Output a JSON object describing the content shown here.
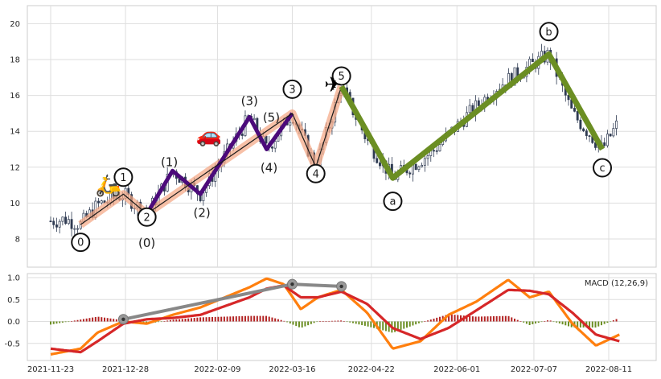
{
  "chart_data": [
    {
      "type": "candlestick",
      "title": "",
      "xlabel": "",
      "ylabel": "",
      "ylim": [
        7,
        21
      ],
      "yticks": [
        "8",
        "10",
        "12",
        "14",
        "16",
        "18",
        "20"
      ],
      "grid": true,
      "waves": {
        "impulse": [
          {
            "label": "0",
            "date": "2021-12-07",
            "value": 8.8
          },
          {
            "label": "1",
            "date": "2021-12-27",
            "value": 10.5
          },
          {
            "label": "2",
            "date": "2022-01-07",
            "value": 9.4
          },
          {
            "label": "3",
            "date": "2022-03-16",
            "value": 15.0
          },
          {
            "label": "4",
            "date": "2022-03-27",
            "value": 12.0
          },
          {
            "label": "5",
            "date": "2022-04-08",
            "value": 16.5
          }
        ],
        "sub_impulse": [
          {
            "label": "(0)",
            "date": "2022-01-07",
            "value": 9.4
          },
          {
            "label": "(1)",
            "date": "2022-01-19",
            "value": 11.8
          },
          {
            "label": "(2)",
            "date": "2022-02-01",
            "value": 10.5
          },
          {
            "label": "(3)",
            "date": "2022-02-24",
            "value": 14.8
          },
          {
            "label": "(4)",
            "date": "2022-03-04",
            "value": 13.0
          },
          {
            "label": "(5)",
            "date": "2022-03-16",
            "value": 15.0
          }
        ],
        "correction": [
          {
            "label": "5",
            "date": "2022-04-08",
            "value": 16.5
          },
          {
            "label": "a",
            "date": "2022-05-02",
            "value": 11.4
          },
          {
            "label": "b",
            "date": "2022-07-14",
            "value": 18.3
          },
          {
            "label": "c",
            "date": "2022-08-08",
            "value": 13.0
          }
        ]
      },
      "price_path": [
        [
          "2021-11-23",
          9.0
        ],
        [
          "2021-11-30",
          9.1
        ],
        [
          "2021-12-07",
          8.8
        ],
        [
          "2021-12-15",
          9.9
        ],
        [
          "2021-12-27",
          10.5
        ],
        [
          "2022-01-07",
          9.4
        ],
        [
          "2022-01-19",
          11.8
        ],
        [
          "2022-02-01",
          10.5
        ],
        [
          "2022-02-24",
          14.8
        ],
        [
          "2022-03-04",
          13.0
        ],
        [
          "2022-03-16",
          15.0
        ],
        [
          "2022-03-27",
          12.0
        ],
        [
          "2022-04-08",
          16.5
        ],
        [
          "2022-04-20",
          13.5
        ],
        [
          "2022-05-02",
          11.4
        ],
        [
          "2022-05-20",
          12.8
        ],
        [
          "2022-06-05",
          14.8
        ],
        [
          "2022-06-20",
          16.5
        ],
        [
          "2022-07-14",
          18.3
        ],
        [
          "2022-07-25",
          15.0
        ],
        [
          "2022-08-08",
          13.0
        ],
        [
          "2022-08-16",
          14.6
        ]
      ]
    },
    {
      "type": "line",
      "legend": "MACD (12,26,9)",
      "legend_position": "top-right",
      "ylim": [
        -0.75,
        1.1
      ],
      "yticks": [
        "1.0",
        "0.5",
        "0.0",
        "-0.5"
      ],
      "grid": true,
      "x_ticks": [
        "2021-11-23",
        "2021-12-28",
        "2022-02-09",
        "2022-03-16",
        "2022-04-22",
        "2022-06-01",
        "2022-07-07",
        "2022-08-11"
      ],
      "series": [
        {
          "name": "",
          "color": "#ff7f0e",
          "points": [
            [
              "2021-11-23",
              -0.75
            ],
            [
              "2021-12-07",
              -0.62
            ],
            [
              "2021-12-15",
              -0.25
            ],
            [
              "2021-12-27",
              0.0
            ],
            [
              "2022-01-07",
              -0.05
            ],
            [
              "2022-01-19",
              0.15
            ],
            [
              "2022-02-01",
              0.32
            ],
            [
              "2022-02-24",
              0.78
            ],
            [
              "2022-03-04",
              0.98
            ],
            [
              "2022-03-12",
              0.85
            ],
            [
              "2022-03-20",
              0.28
            ],
            [
              "2022-03-28",
              0.55
            ],
            [
              "2022-04-08",
              0.72
            ],
            [
              "2022-04-20",
              0.2
            ],
            [
              "2022-05-02",
              -0.62
            ],
            [
              "2022-05-15",
              -0.45
            ],
            [
              "2022-05-28",
              0.15
            ],
            [
              "2022-06-10",
              0.45
            ],
            [
              "2022-06-25",
              0.95
            ],
            [
              "2022-07-05",
              0.55
            ],
            [
              "2022-07-14",
              0.68
            ],
            [
              "2022-07-25",
              -0.05
            ],
            [
              "2022-08-05",
              -0.55
            ],
            [
              "2022-08-16",
              -0.3
            ]
          ]
        },
        {
          "name": "",
          "color": "#d62728",
          "points": [
            [
              "2021-11-23",
              -0.62
            ],
            [
              "2021-12-07",
              -0.7
            ],
            [
              "2021-12-15",
              -0.45
            ],
            [
              "2021-12-27",
              -0.05
            ],
            [
              "2022-01-07",
              0.05
            ],
            [
              "2022-01-19",
              0.08
            ],
            [
              "2022-02-01",
              0.15
            ],
            [
              "2022-02-24",
              0.55
            ],
            [
              "2022-03-04",
              0.75
            ],
            [
              "2022-03-12",
              0.82
            ],
            [
              "2022-03-20",
              0.55
            ],
            [
              "2022-03-28",
              0.55
            ],
            [
              "2022-04-08",
              0.68
            ],
            [
              "2022-04-20",
              0.4
            ],
            [
              "2022-05-02",
              -0.15
            ],
            [
              "2022-05-15",
              -0.4
            ],
            [
              "2022-05-28",
              -0.15
            ],
            [
              "2022-06-10",
              0.25
            ],
            [
              "2022-06-25",
              0.72
            ],
            [
              "2022-07-05",
              0.7
            ],
            [
              "2022-07-14",
              0.62
            ],
            [
              "2022-07-25",
              0.2
            ],
            [
              "2022-08-05",
              -0.3
            ],
            [
              "2022-08-16",
              -0.45
            ]
          ]
        },
        {
          "name": "",
          "color": "#888888",
          "points": [
            [
              "2021-12-27",
              0.05
            ],
            [
              "2022-03-16",
              0.85
            ],
            [
              "2022-04-08",
              0.8
            ]
          ]
        }
      ]
    }
  ]
}
